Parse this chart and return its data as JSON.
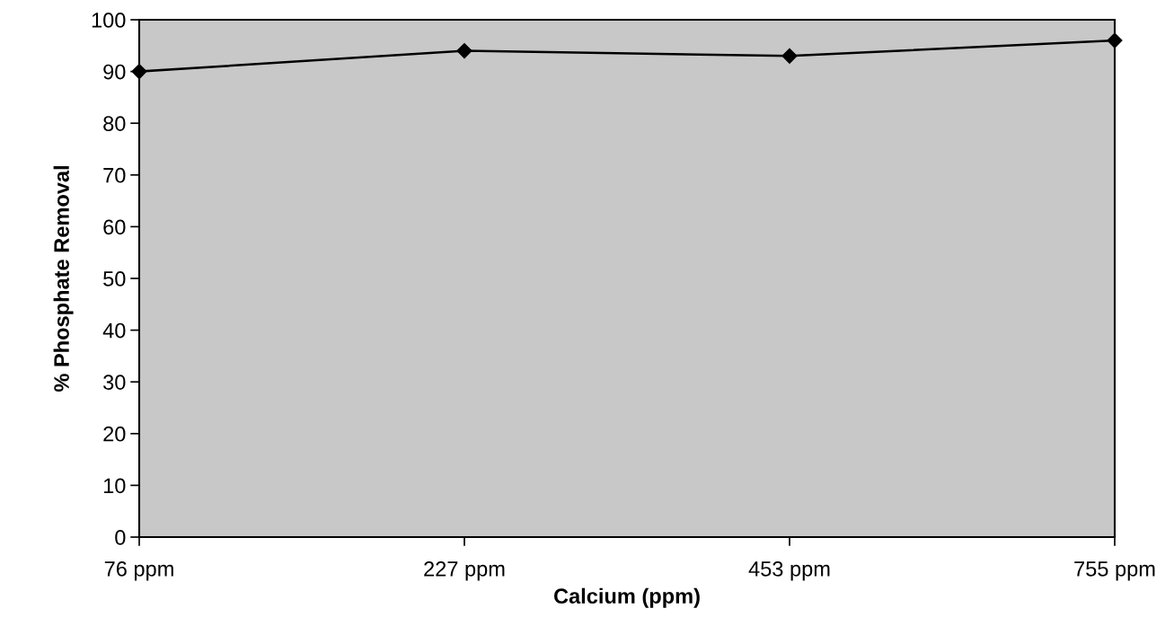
{
  "chart_data": {
    "type": "line",
    "xlabel": "Calcium (ppm)",
    "ylabel": "% Phosphate Removal",
    "categories": [
      "76 ppm",
      "227 ppm",
      "453 ppm",
      "755 ppm"
    ],
    "series": [
      {
        "color": "#000000",
        "values": [
          90,
          94,
          93,
          96
        ]
      }
    ],
    "ylim": [
      0,
      100
    ],
    "yticks": [
      0,
      10,
      20,
      30,
      40,
      50,
      60,
      70,
      80,
      90,
      100
    ],
    "marker": "diamond",
    "line_style": "solid",
    "grid": false,
    "legend": false
  }
}
